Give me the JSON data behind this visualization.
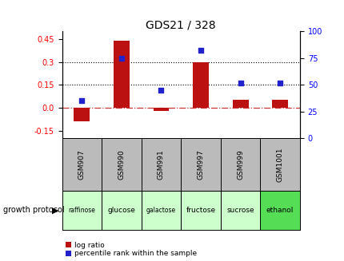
{
  "title": "GDS21 / 328",
  "samples": [
    "GSM907",
    "GSM990",
    "GSM991",
    "GSM997",
    "GSM999",
    "GSM1001"
  ],
  "protocols": [
    "raffinose",
    "glucose",
    "galactose",
    "fructose",
    "sucrose",
    "ethanol"
  ],
  "log_ratio": [
    -0.09,
    0.44,
    -0.02,
    0.3,
    0.05,
    0.05
  ],
  "percentile_rank": [
    35,
    75,
    45,
    82,
    52,
    52
  ],
  "left_ylim": [
    -0.2,
    0.5
  ],
  "right_ylim": [
    0,
    100
  ],
  "left_yticks": [
    -0.15,
    0.0,
    0.15,
    0.3,
    0.45
  ],
  "right_yticks": [
    0,
    25,
    50,
    75,
    100
  ],
  "hlines": [
    0.15,
    0.3
  ],
  "bar_color": "#bb1111",
  "dot_color": "#2222cc",
  "zero_line_color": "#cc3333",
  "bg_color": "#ffffff",
  "plot_bg": "#ffffff",
  "protocol_colors": [
    "#ccffcc",
    "#ccffcc",
    "#ccffcc",
    "#ccffcc",
    "#ccffcc",
    "#55dd55"
  ],
  "gsm_bg": "#bbbbbb",
  "legend_red_label": "log ratio",
  "legend_blue_label": "percentile rank within the sample",
  "growth_protocol_label": "growth protocol"
}
